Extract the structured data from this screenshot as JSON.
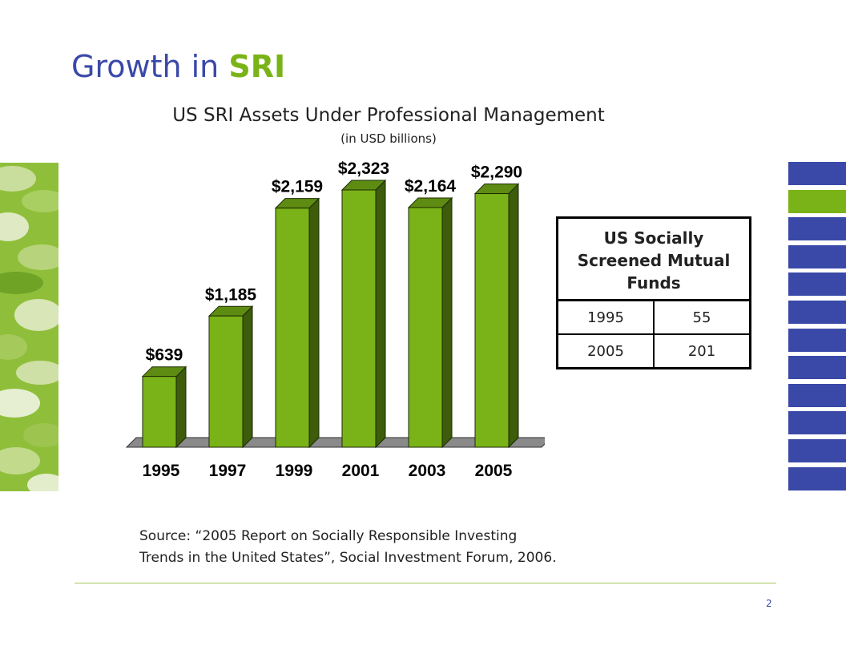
{
  "slide": {
    "title_prefix": "Growth in ",
    "title_accent": "SRI",
    "page_number": "2",
    "accent_color": "#7ab317",
    "brand_color": "#3a49a8"
  },
  "chart_data": {
    "type": "bar",
    "title": "US SRI Assets Under Professional Management",
    "subtitle": "(in USD billions)",
    "categories": [
      "1995",
      "1997",
      "1999",
      "2001",
      "2003",
      "2005"
    ],
    "values": [
      639,
      1185,
      2159,
      2323,
      2164,
      2290
    ],
    "data_labels": [
      "$639",
      "$1,185",
      "$2,159",
      "$2,323",
      "$2,164",
      "$2,290"
    ],
    "ylim": [
      0,
      2323
    ],
    "grid": false,
    "legend": "none",
    "bar_color": "#7ab317"
  },
  "table": {
    "header": "US Socially Screened Mutual Funds",
    "rows": [
      {
        "year": "1995",
        "count": "55"
      },
      {
        "year": "2005",
        "count": "201"
      }
    ]
  },
  "source": {
    "line1": "Source:  “2005 Report on Socially Responsible Investing",
    "line2": "Trends in the United States”, Social Investment Forum, 2006."
  },
  "side_tabs": {
    "count": 12,
    "active_index": 1
  }
}
